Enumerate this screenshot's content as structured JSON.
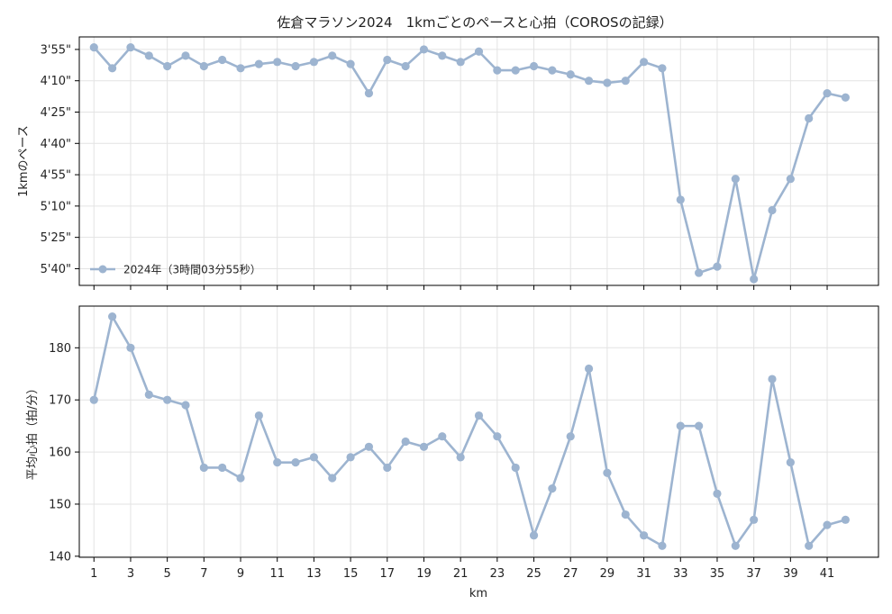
{
  "figure": {
    "title": "佐倉マラソン2024　1kmごとのペースと心拍（COROSの記録）"
  },
  "chart_data": [
    {
      "type": "line",
      "ylabel": "1kmのペース",
      "y_unit": "seconds per km (axis inverted, faster at top)",
      "y_inverted": true,
      "ylim_seconds": [
        348,
        229
      ],
      "yticks_seconds": [
        235,
        250,
        265,
        280,
        295,
        310,
        325,
        340
      ],
      "ytick_labels": [
        "3'55\"",
        "4'10\"",
        "4'25\"",
        "4'40\"",
        "4'55\"",
        "5'10\"",
        "5'25\"",
        "5'40\""
      ],
      "grid": true,
      "legend_position": "lower-left",
      "series": [
        {
          "name": "2024年（3時間03分55秒）",
          "color": "#9db4d0",
          "x": [
            1,
            2,
            3,
            4,
            5,
            6,
            7,
            8,
            9,
            10,
            11,
            12,
            13,
            14,
            15,
            16,
            17,
            18,
            19,
            20,
            21,
            22,
            23,
            24,
            25,
            26,
            27,
            28,
            29,
            30,
            31,
            32,
            33,
            34,
            35,
            36,
            37,
            38,
            39,
            40,
            41,
            42
          ],
          "values_seconds": [
            234,
            244,
            234,
            238,
            243,
            238,
            243,
            240,
            244,
            242,
            241,
            243,
            241,
            238,
            242,
            256,
            240,
            243,
            235,
            238,
            241,
            236,
            245,
            245,
            243,
            245,
            247,
            250,
            251,
            250,
            241,
            244,
            307,
            342,
            339,
            297,
            345,
            312,
            297,
            268,
            256,
            258
          ]
        }
      ]
    },
    {
      "type": "line",
      "xlabel": "km",
      "ylabel": "平均心拍（拍/分）",
      "xlim": [
        0.2,
        43.8
      ],
      "ylim": [
        139.8,
        188
      ],
      "xticks": [
        1,
        3,
        5,
        7,
        9,
        11,
        13,
        15,
        17,
        19,
        21,
        23,
        25,
        27,
        29,
        31,
        33,
        35,
        37,
        39,
        41
      ],
      "yticks": [
        140,
        150,
        160,
        170,
        180
      ],
      "grid": true,
      "series": [
        {
          "name": "",
          "color": "#9db4d0",
          "x": [
            1,
            2,
            3,
            4,
            5,
            6,
            7,
            8,
            9,
            10,
            11,
            12,
            13,
            14,
            15,
            16,
            17,
            18,
            19,
            20,
            21,
            22,
            23,
            24,
            25,
            26,
            27,
            28,
            29,
            30,
            31,
            32,
            33,
            34,
            35,
            36,
            37,
            38,
            39,
            40,
            41,
            42
          ],
          "values": [
            170,
            186,
            180,
            171,
            170,
            169,
            157,
            157,
            155,
            167,
            158,
            158,
            159,
            155,
            159,
            161,
            157,
            162,
            161,
            163,
            159,
            167,
            163,
            157,
            144,
            153,
            163,
            176,
            156,
            148,
            144,
            142,
            165,
            165,
            152,
            142,
            147,
            174,
            158,
            142,
            146,
            147
          ]
        }
      ]
    }
  ]
}
